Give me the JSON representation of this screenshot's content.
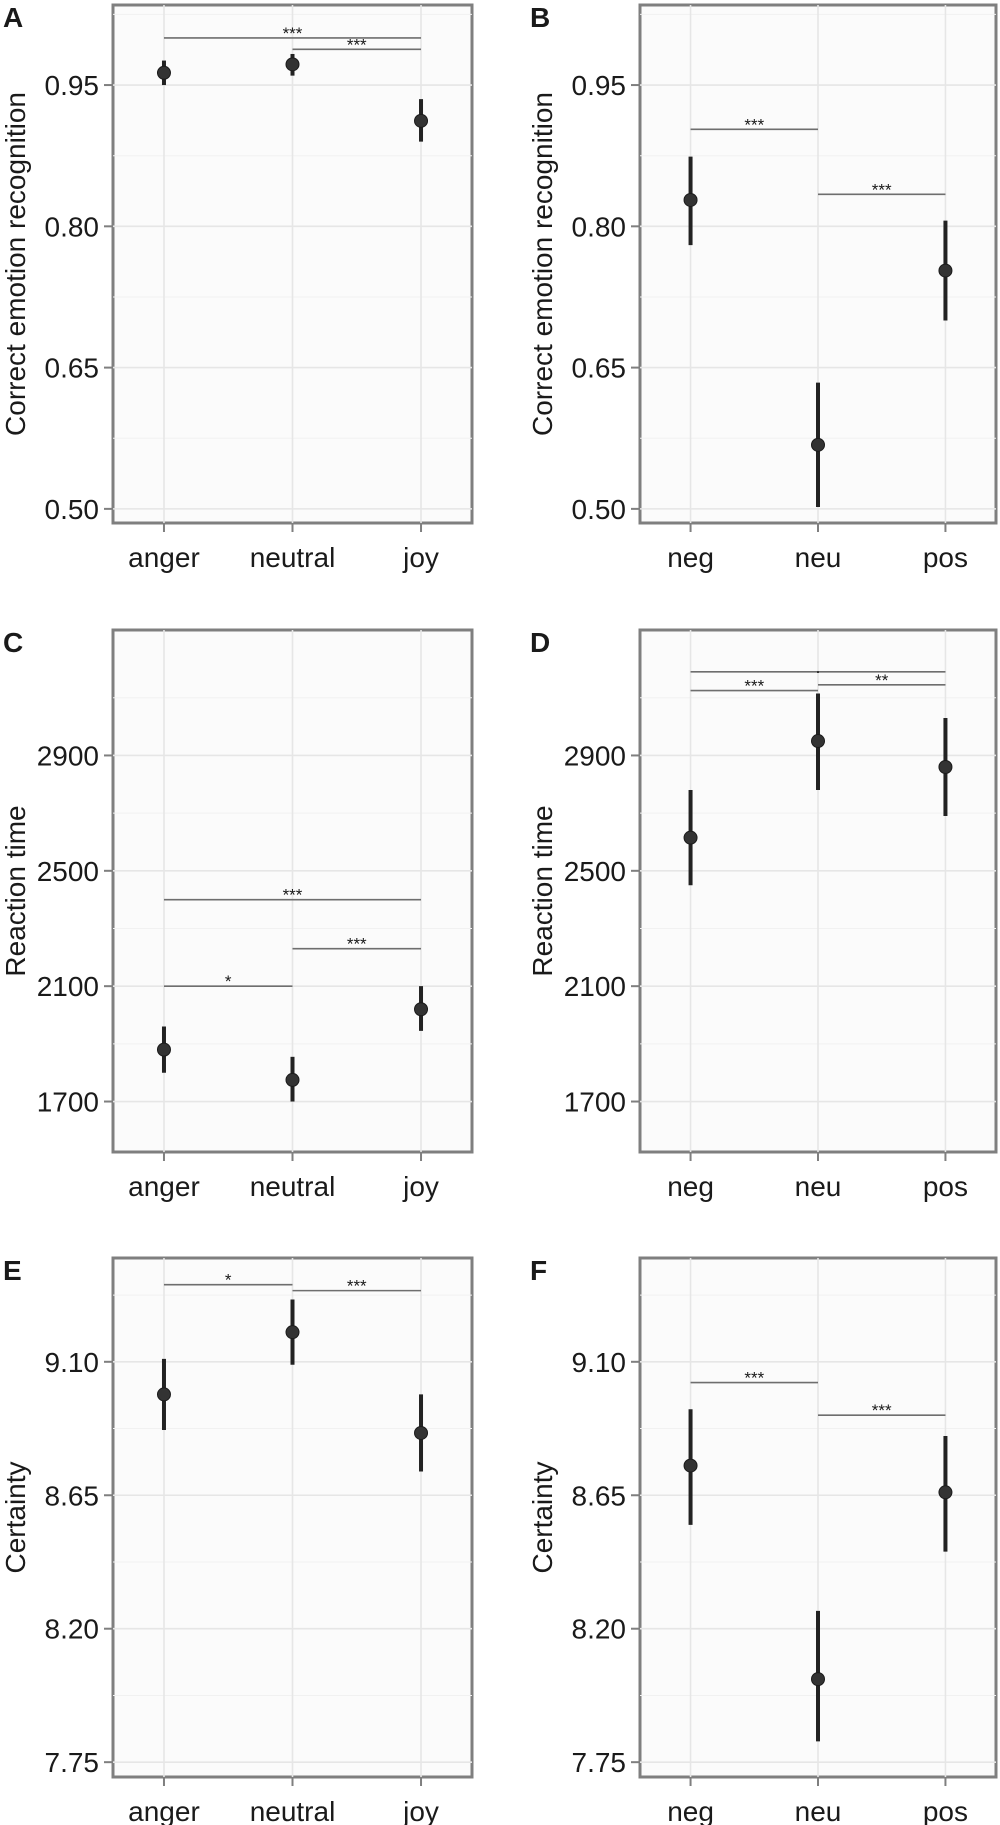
{
  "chart_data": [
    {
      "panel": "A",
      "type": "scatter",
      "ylabel": "Correct emotion recognition",
      "xlabel": "",
      "categories": [
        "anger",
        "neutral",
        "joy"
      ],
      "means": [
        0.963,
        0.972,
        0.912
      ],
      "ci": [
        [
          0.95,
          0.976
        ],
        [
          0.96,
          0.983
        ],
        [
          0.89,
          0.935
        ]
      ],
      "yticks": [
        "0.50",
        "0.65",
        "0.80",
        "0.95"
      ],
      "ylim": [
        0.485,
        1.035
      ],
      "brackets": [
        {
          "from": 0,
          "to": 2,
          "y": 1.0,
          "label": "***"
        },
        {
          "from": 1,
          "to": 2,
          "y": 0.988,
          "label": "***"
        }
      ]
    },
    {
      "panel": "B",
      "type": "scatter",
      "ylabel": "Correct emotion recognition",
      "xlabel": "",
      "categories": [
        "neg",
        "neu",
        "pos"
      ],
      "means": [
        0.828,
        0.568,
        0.753
      ],
      "ci": [
        [
          0.78,
          0.874
        ],
        [
          0.502,
          0.634
        ],
        [
          0.7,
          0.806
        ]
      ],
      "yticks": [
        "0.50",
        "0.65",
        "0.80",
        "0.95"
      ],
      "ylim": [
        0.485,
        1.035
      ],
      "brackets": [
        {
          "from": 0,
          "to": 1,
          "y": 0.903,
          "label": "***"
        },
        {
          "from": 1,
          "to": 2,
          "y": 0.834,
          "label": "***"
        }
      ]
    },
    {
      "panel": "C",
      "type": "scatter",
      "ylabel": "Reaction time",
      "xlabel": "",
      "categories": [
        "anger",
        "neutral",
        "joy"
      ],
      "means": [
        1880,
        1775,
        2020
      ],
      "ci": [
        [
          1800,
          1960
        ],
        [
          1700,
          1855
        ],
        [
          1945,
          2100
        ]
      ],
      "yticks": [
        "1700",
        "2100",
        "2500",
        "2900"
      ],
      "ylim": [
        1525,
        3335
      ],
      "brackets": [
        {
          "from": 0,
          "to": 2,
          "y": 2400,
          "label": "***"
        },
        {
          "from": 1,
          "to": 2,
          "y": 2230,
          "label": "***"
        },
        {
          "from": 0,
          "to": 1,
          "y": 2100,
          "label": "*"
        }
      ]
    },
    {
      "panel": "D",
      "type": "scatter",
      "ylabel": "Reaction time",
      "xlabel": "",
      "categories": [
        "neg",
        "neu",
        "pos"
      ],
      "means": [
        2615,
        2950,
        2860
      ],
      "ci": [
        [
          2450,
          2780
        ],
        [
          2780,
          3115
        ],
        [
          2690,
          3030
        ]
      ],
      "yticks": [
        "1700",
        "2100",
        "2500",
        "2900"
      ],
      "ylim": [
        1525,
        3335
      ],
      "brackets": [
        {
          "from": 0,
          "to": 2,
          "y": 3190,
          "label": "."
        },
        {
          "from": 1,
          "to": 2,
          "y": 3145,
          "label": "**"
        },
        {
          "from": 0,
          "to": 1,
          "y": 3125,
          "label": "***"
        }
      ]
    },
    {
      "panel": "E",
      "type": "scatter",
      "ylabel": "Certainty",
      "xlabel": "",
      "categories": [
        "anger",
        "neutral",
        "joy"
      ],
      "means": [
        8.99,
        9.2,
        8.86
      ],
      "ci": [
        [
          8.87,
          9.11
        ],
        [
          9.09,
          9.31
        ],
        [
          8.73,
          8.99
        ]
      ],
      "yticks": [
        "7.75",
        "8.20",
        "8.65",
        "9.10"
      ],
      "ylim": [
        7.7,
        9.45
      ],
      "brackets": [
        {
          "from": 0,
          "to": 1,
          "y": 9.36,
          "label": "*"
        },
        {
          "from": 1,
          "to": 2,
          "y": 9.34,
          "label": "***"
        }
      ]
    },
    {
      "panel": "F",
      "type": "scatter",
      "ylabel": "Certainty",
      "xlabel": "",
      "categories": [
        "neg",
        "neu",
        "pos"
      ],
      "means": [
        8.75,
        8.03,
        8.66
      ],
      "ci": [
        [
          8.55,
          8.94
        ],
        [
          7.82,
          8.26
        ],
        [
          8.46,
          8.85
        ]
      ],
      "yticks": [
        "7.75",
        "8.20",
        "8.65",
        "9.10"
      ],
      "ylim": [
        7.7,
        9.45
      ],
      "brackets": [
        {
          "from": 0,
          "to": 1,
          "y": 9.03,
          "label": "***"
        },
        {
          "from": 1,
          "to": 2,
          "y": 8.92,
          "label": "***"
        }
      ]
    }
  ]
}
